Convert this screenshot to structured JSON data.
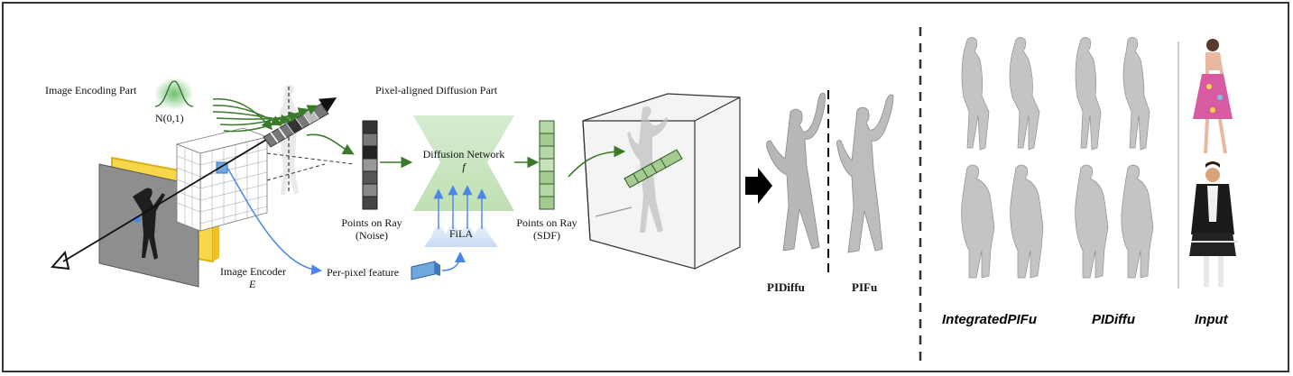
{
  "left": {
    "image_encoding_part": "Image Encoding Part",
    "noise": "N(0,1)",
    "image_encoder": "Image Encoder",
    "encoder_symbol": "E",
    "per_pixel_feature": "Per-pixel feature"
  },
  "middle": {
    "pixel_aligned_diffusion_part": "Pixel-aligned Diffusion Part",
    "diffusion_network": "Diffusion Network",
    "diffusion_symbol": "f",
    "fila": "FiLA",
    "points_on_ray_noise_line1": "Points on Ray",
    "points_on_ray_noise_line2": "(Noise)",
    "points_on_ray_sdf_line1": "Points on Ray",
    "points_on_ray_sdf_line2": "(SDF)"
  },
  "results": {
    "pidiffu": "PIDiffu",
    "pifu": "PIFu"
  },
  "comparison": {
    "integrated_pifu": "IntegratedPIFu",
    "pidiffu": "PIDiffu",
    "input": "Input"
  }
}
